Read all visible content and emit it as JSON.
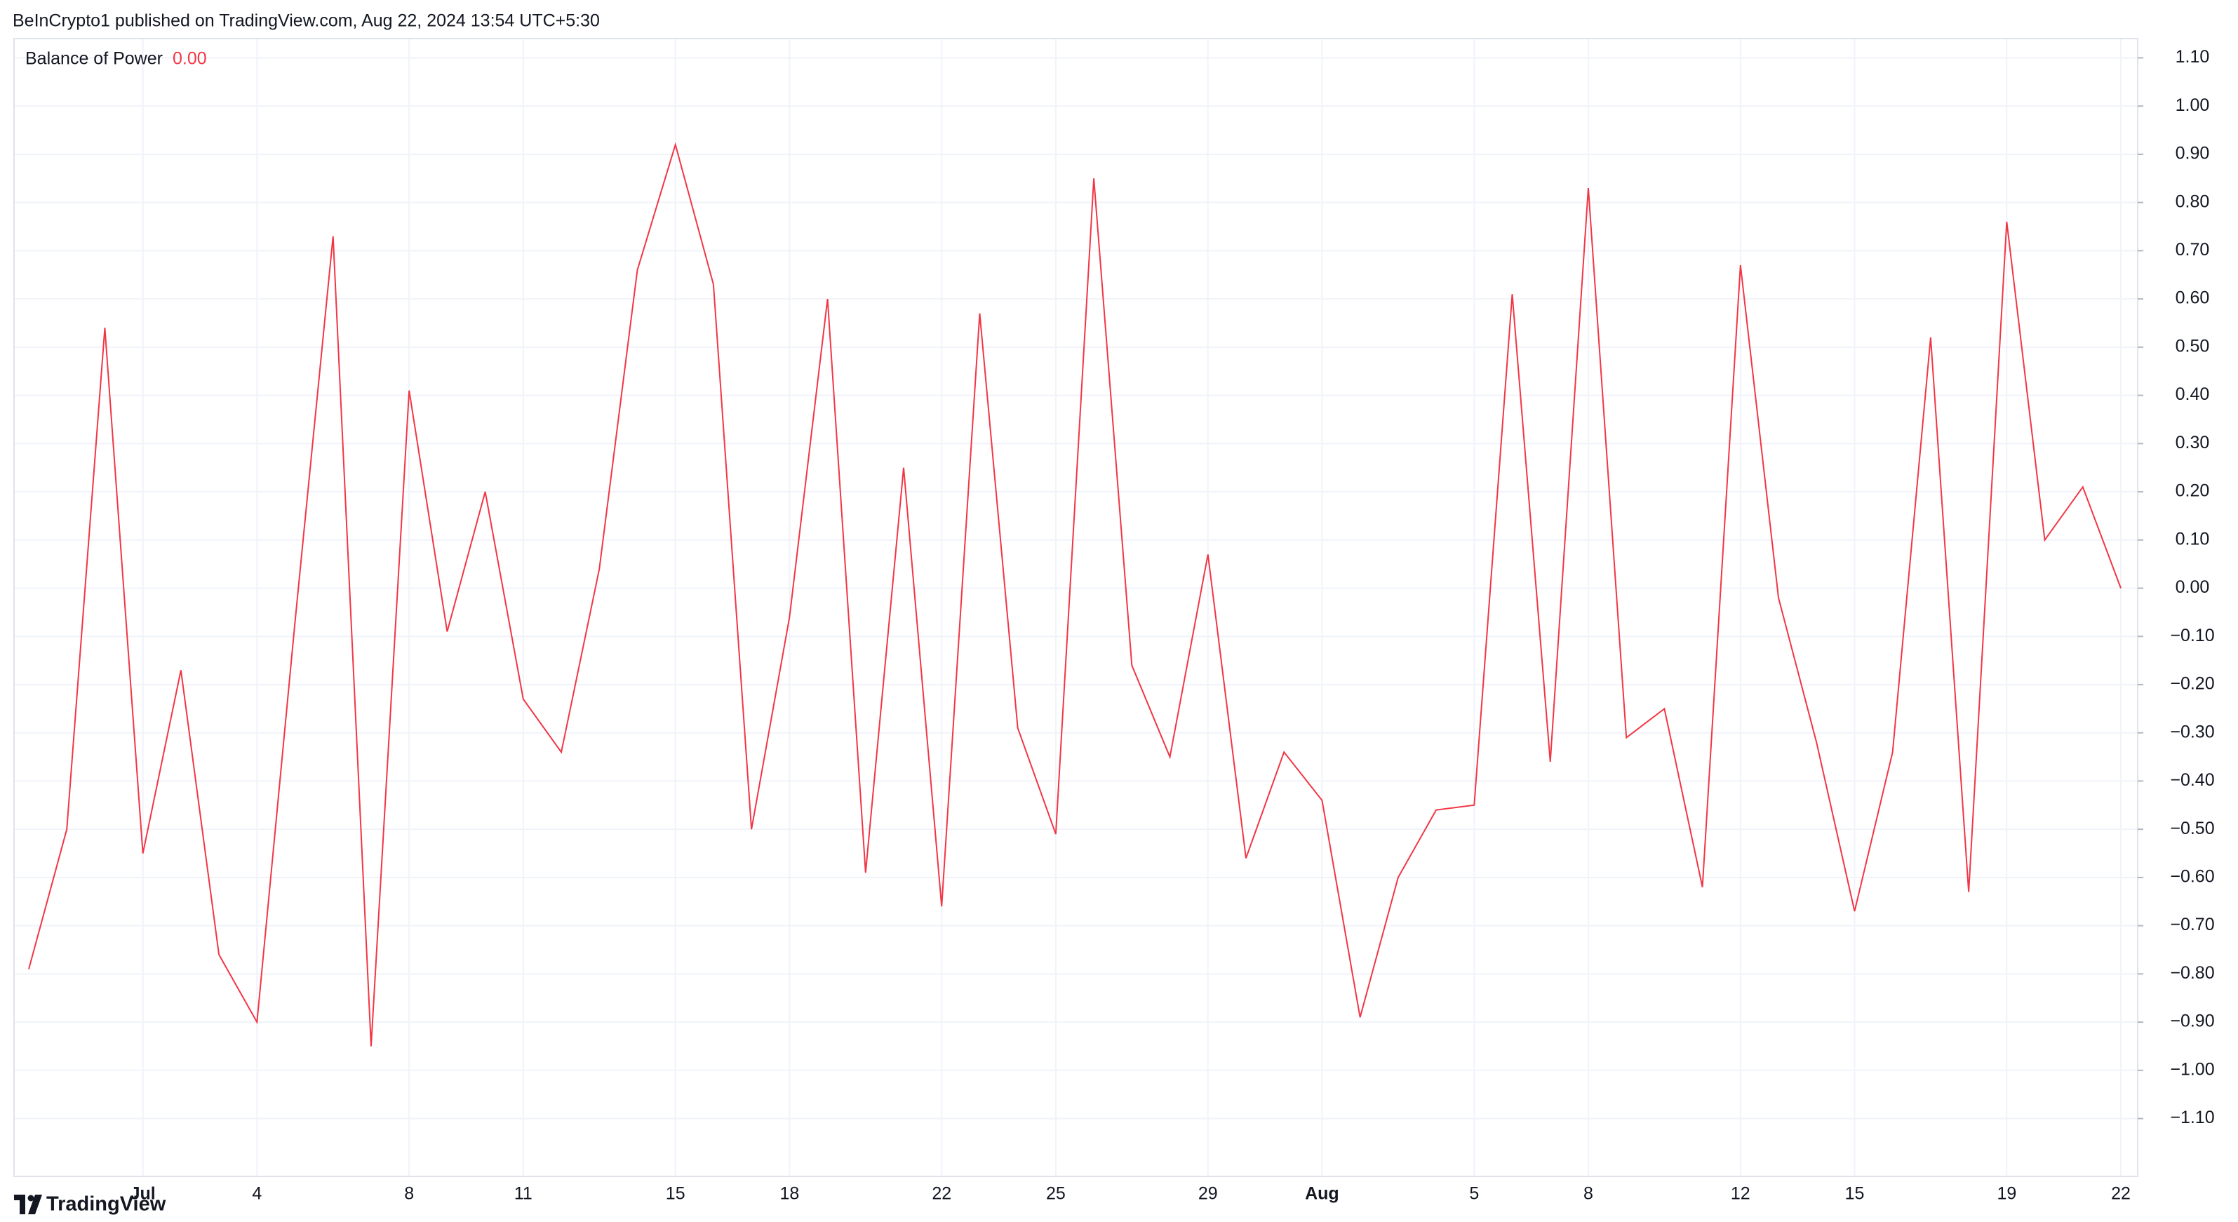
{
  "header": "BeInCrypto1 published on TradingView.com, Aug 22, 2024 13:54 UTC+5:30",
  "brand": "TradingView",
  "chart_data": {
    "type": "line",
    "legend_name": "Balance of Power",
    "legend_value": "0.00",
    "x": [
      "Jun 28",
      "Jun 29",
      "Jun 30",
      "Jul 1",
      "Jul 2",
      "Jul 3",
      "Jul 4",
      "Jul 5",
      "Jul 6",
      "Jul 7",
      "Jul 8",
      "Jul 9",
      "Jul 10",
      "Jul 11",
      "Jul 12",
      "Jul 13",
      "Jul 14",
      "Jul 15",
      "Jul 16",
      "Jul 17",
      "Jul 18",
      "Jul 19",
      "Jul 20",
      "Jul 21",
      "Jul 22",
      "Jul 23",
      "Jul 24",
      "Jul 25",
      "Jul 26",
      "Jul 27",
      "Jul 28",
      "Jul 29",
      "Jul 30",
      "Jul 31",
      "Aug 1",
      "Aug 2",
      "Aug 3",
      "Aug 4",
      "Aug 5",
      "Aug 6",
      "Aug 7",
      "Aug 8",
      "Aug 9",
      "Aug 10",
      "Aug 11",
      "Aug 12",
      "Aug 13",
      "Aug 14",
      "Aug 15",
      "Aug 16",
      "Aug 17",
      "Aug 18",
      "Aug 19",
      "Aug 20",
      "Aug 21",
      "Aug 22"
    ],
    "series": [
      {
        "name": "Balance of Power",
        "color": "#f23645",
        "values": [
          -0.79,
          -0.5,
          0.54,
          -0.55,
          -0.17,
          -0.76,
          -0.9,
          -0.07,
          0.73,
          -0.95,
          0.41,
          -0.09,
          0.2,
          -0.23,
          -0.34,
          0.04,
          0.66,
          0.92,
          0.63,
          -0.5,
          -0.06,
          0.6,
          -0.59,
          0.25,
          -0.66,
          0.57,
          -0.29,
          -0.51,
          0.85,
          -0.16,
          -0.35,
          0.07,
          -0.56,
          -0.34,
          -0.44,
          -0.89,
          -0.6,
          -0.46,
          -0.45,
          0.61,
          -0.36,
          0.83,
          -0.31,
          -0.25,
          -0.62,
          0.67,
          -0.02,
          -0.32,
          -0.67,
          -0.34,
          0.52,
          -0.63,
          0.76,
          0.1,
          0.21,
          0.0
        ]
      }
    ],
    "xticks": [
      {
        "value": "Jul 1",
        "label": "Jul"
      },
      {
        "value": "Jul 4",
        "label": "4"
      },
      {
        "value": "Jul 8",
        "label": "8"
      },
      {
        "value": "Jul 11",
        "label": "11"
      },
      {
        "value": "Jul 15",
        "label": "15"
      },
      {
        "value": "Jul 18",
        "label": "18"
      },
      {
        "value": "Jul 22",
        "label": "22"
      },
      {
        "value": "Jul 25",
        "label": "25"
      },
      {
        "value": "Jul 29",
        "label": "29"
      },
      {
        "value": "Aug 1",
        "label": "Aug"
      },
      {
        "value": "Aug 5",
        "label": "5"
      },
      {
        "value": "Aug 8",
        "label": "8"
      },
      {
        "value": "Aug 12",
        "label": "12"
      },
      {
        "value": "Aug 15",
        "label": "15"
      },
      {
        "value": "Aug 19",
        "label": "19"
      },
      {
        "value": "Aug 22",
        "label": "22"
      }
    ],
    "ylim": [
      -1.22,
      1.14
    ],
    "yticks": [
      {
        "value": 1.1,
        "label": "1.10"
      },
      {
        "value": 1.0,
        "label": "1.00"
      },
      {
        "value": 0.9,
        "label": "0.90"
      },
      {
        "value": 0.8,
        "label": "0.80"
      },
      {
        "value": 0.7,
        "label": "0.70"
      },
      {
        "value": 0.6,
        "label": "0.60"
      },
      {
        "value": 0.5,
        "label": "0.50"
      },
      {
        "value": 0.4,
        "label": "0.40"
      },
      {
        "value": 0.3,
        "label": "0.30"
      },
      {
        "value": 0.2,
        "label": "0.20"
      },
      {
        "value": 0.1,
        "label": "0.10"
      },
      {
        "value": 0,
        "label": "0.00"
      },
      {
        "value": -0.1,
        "label": "−0.10"
      },
      {
        "value": -0.2,
        "label": "−0.20"
      },
      {
        "value": -0.3,
        "label": "−0.30"
      },
      {
        "value": -0.4,
        "label": "−0.40"
      },
      {
        "value": -0.5,
        "label": "−0.50"
      },
      {
        "value": -0.6,
        "label": "−0.60"
      },
      {
        "value": -0.7,
        "label": "−0.70"
      },
      {
        "value": -0.8,
        "label": "−0.80"
      },
      {
        "value": -0.9,
        "label": "−0.90"
      },
      {
        "value": -1.0,
        "label": "−1.00"
      },
      {
        "value": -1.1,
        "label": "−1.10"
      }
    ],
    "grid": true
  }
}
